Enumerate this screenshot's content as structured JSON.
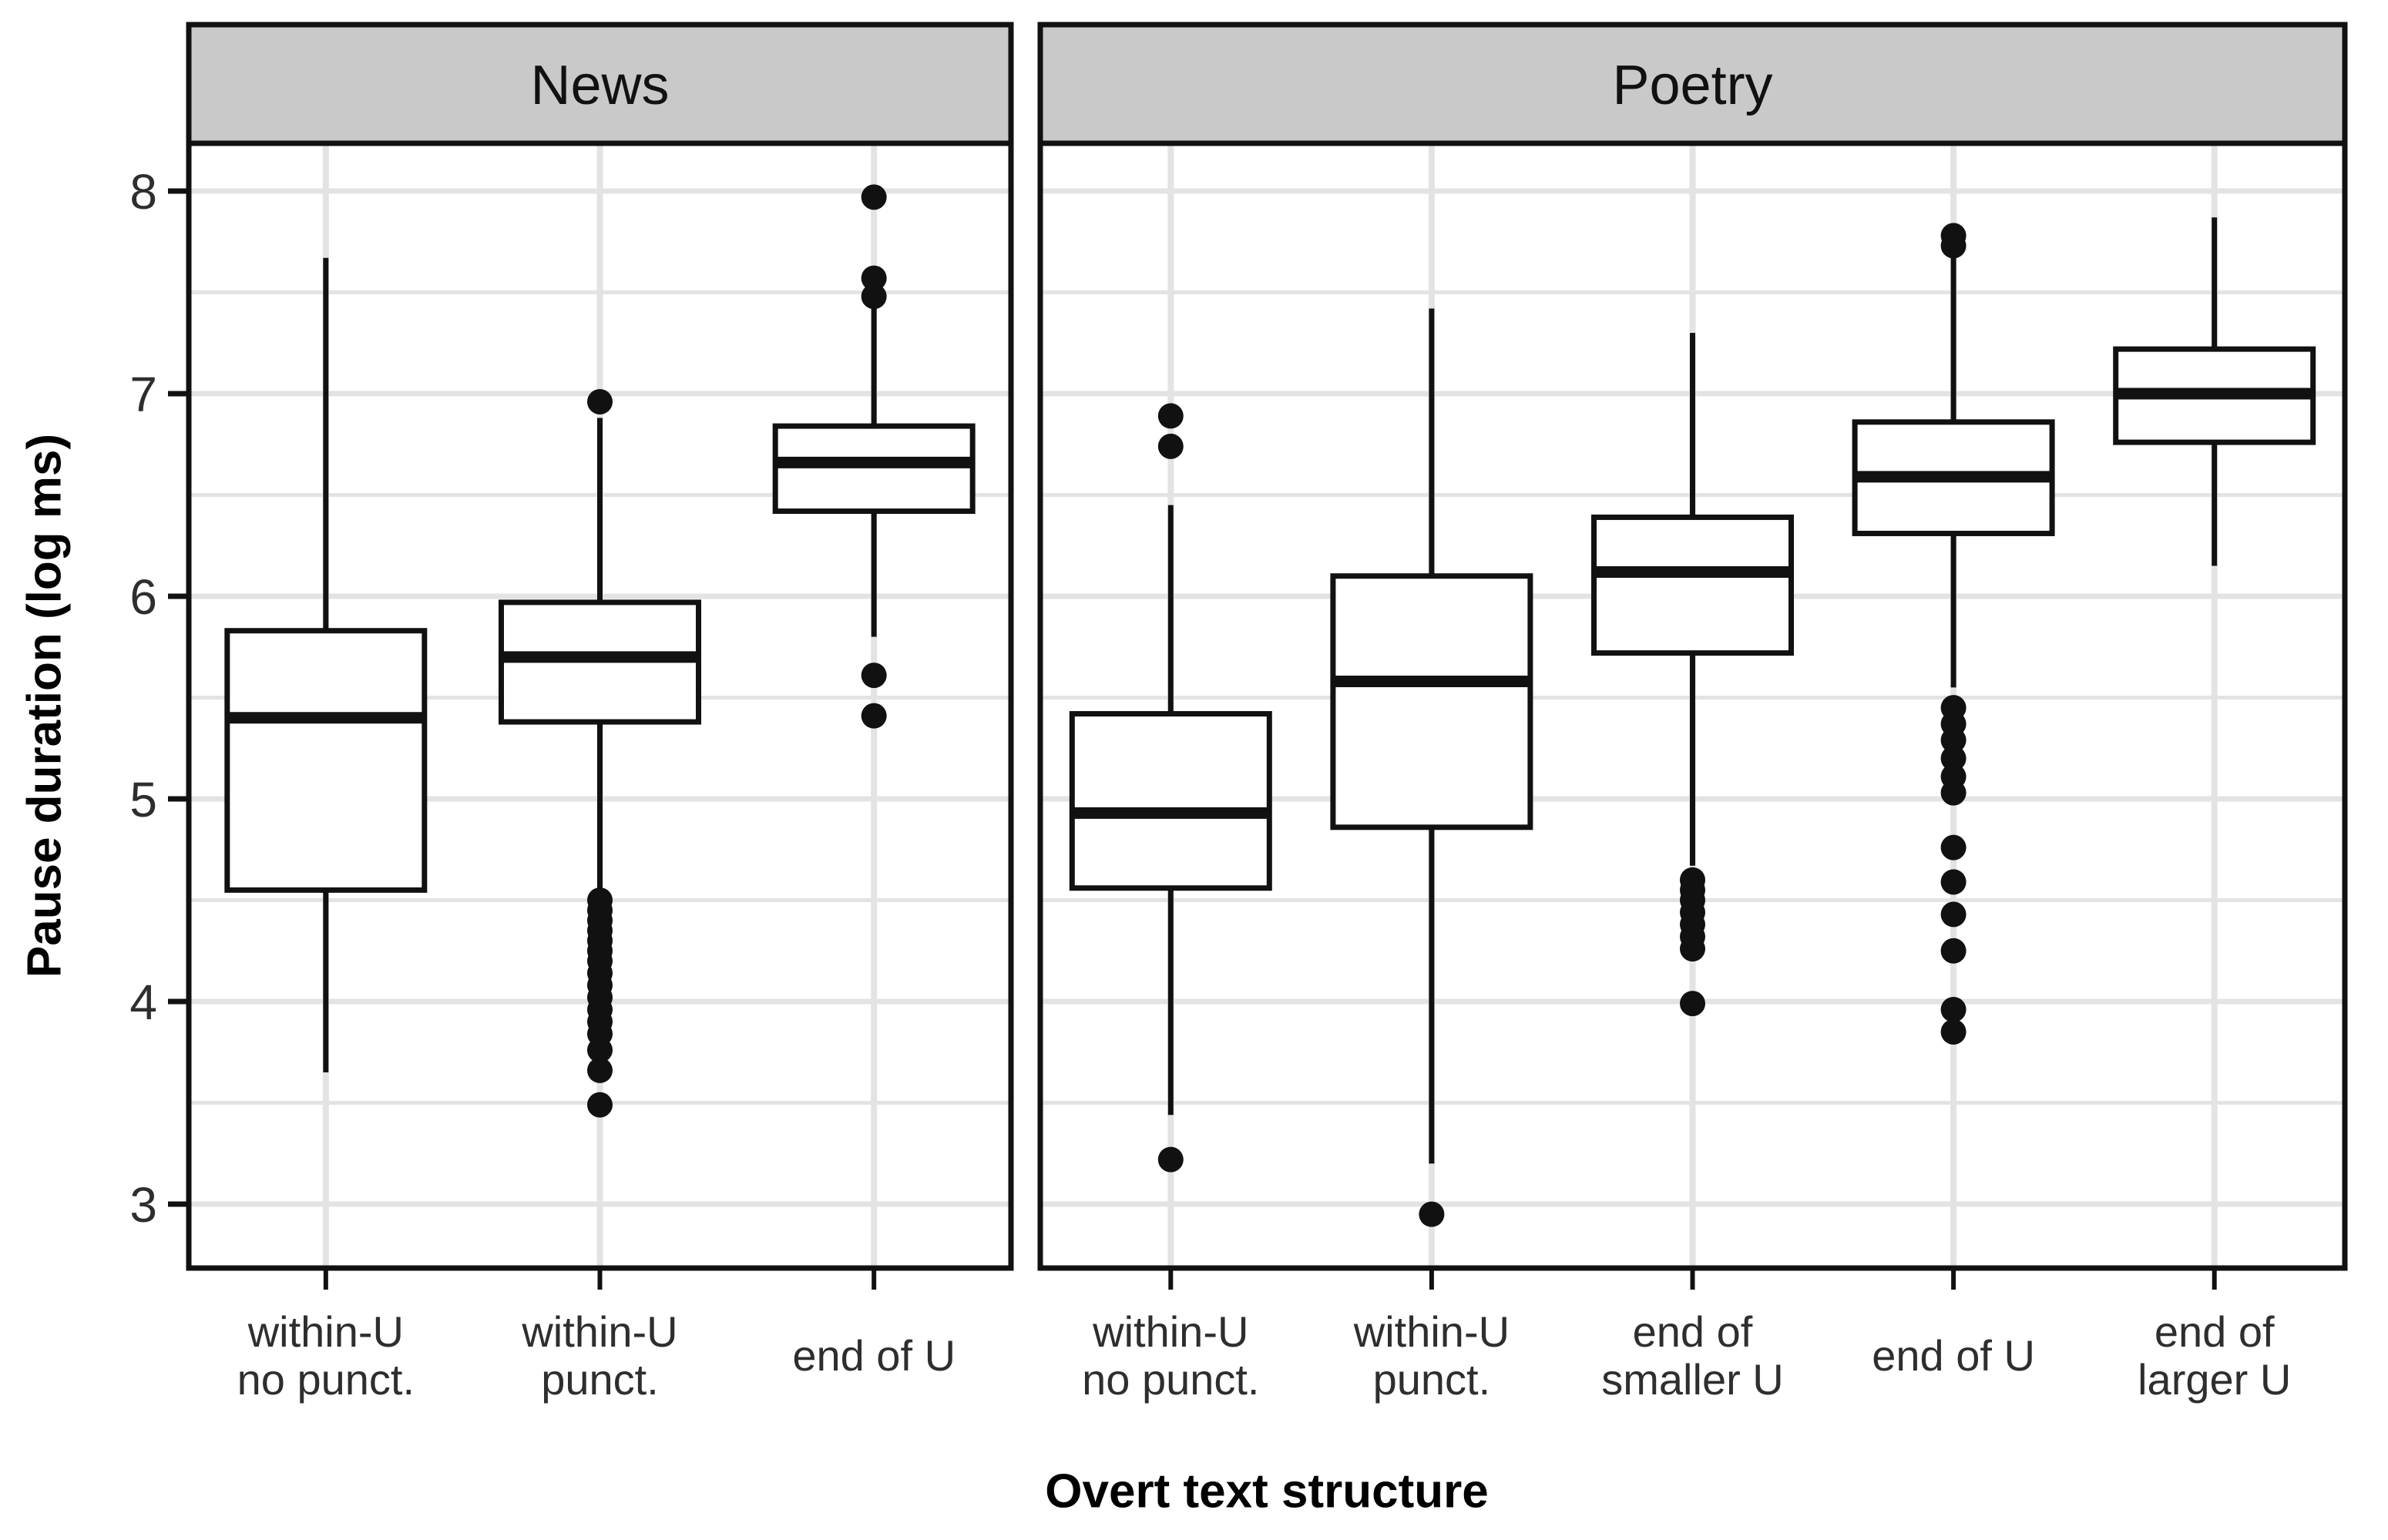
{
  "chart_data": {
    "type": "boxplot",
    "title": "",
    "xlabel": "Overt text structure",
    "ylabel": "Pause duration (log ms)",
    "ylim": [
      2.7,
      8.25
    ],
    "yticks": [
      3,
      4,
      5,
      6,
      7,
      8
    ],
    "minor_gridlines": [
      3.5,
      4.5,
      5.5,
      6.5,
      7.5
    ],
    "grid": "on",
    "legend": "none",
    "facets": [
      {
        "label": "News",
        "boxes": [
          {
            "category_lines": [
              "within-U",
              "no punct."
            ],
            "whisker_low": 3.65,
            "q1": 4.55,
            "median": 5.4,
            "q3": 5.83,
            "whisker_high": 7.67,
            "outliers": []
          },
          {
            "category_lines": [
              "within-U",
              "punct."
            ],
            "whisker_low": 4.56,
            "q1": 5.38,
            "median": 5.7,
            "q3": 5.97,
            "whisker_high": 6.88,
            "outliers": [
              6.96,
              4.5,
              4.45,
              4.4,
              4.35,
              4.3,
              4.25,
              4.2,
              4.14,
              4.08,
              4.02,
              3.96,
              3.9,
              3.84,
              3.76,
              3.66,
              3.49
            ]
          },
          {
            "category_lines": [
              "end of U"
            ],
            "whisker_low": 5.8,
            "q1": 6.42,
            "median": 6.66,
            "q3": 6.84,
            "whisker_high": 7.42,
            "outliers": [
              7.97,
              7.57,
              7.48,
              5.61,
              5.41
            ]
          }
        ]
      },
      {
        "label": "Poetry",
        "boxes": [
          {
            "category_lines": [
              "within-U",
              "no punct."
            ],
            "whisker_low": 3.44,
            "q1": 4.56,
            "median": 4.93,
            "q3": 5.42,
            "whisker_high": 6.45,
            "outliers": [
              6.89,
              6.74,
              3.22
            ]
          },
          {
            "category_lines": [
              "within-U",
              "punct."
            ],
            "whisker_low": 3.2,
            "q1": 4.86,
            "median": 5.58,
            "q3": 6.1,
            "whisker_high": 7.42,
            "outliers": [
              2.95
            ]
          },
          {
            "category_lines": [
              "end of",
              "smaller U"
            ],
            "whisker_low": 4.67,
            "q1": 5.72,
            "median": 6.12,
            "q3": 6.39,
            "whisker_high": 7.3,
            "outliers": [
              4.6,
              4.55,
              4.5,
              4.44,
              4.38,
              4.32,
              4.26,
              3.99
            ]
          },
          {
            "category_lines": [
              "end of U"
            ],
            "whisker_low": 5.55,
            "q1": 6.31,
            "median": 6.59,
            "q3": 6.86,
            "whisker_high": 7.67,
            "outliers": [
              7.78,
              7.73,
              5.45,
              5.37,
              5.29,
              5.2,
              5.11,
              5.03,
              4.76,
              4.59,
              4.43,
              4.25,
              3.96,
              3.85
            ]
          },
          {
            "category_lines": [
              "end of",
              "larger U"
            ],
            "whisker_low": 6.15,
            "q1": 6.76,
            "median": 7.0,
            "q3": 7.22,
            "whisker_high": 7.87,
            "outliers": []
          }
        ]
      }
    ],
    "colors": {
      "line": "#111111",
      "strip_bg": "#c9c9c9",
      "grid": "#e3e3e3",
      "axis_text": "#2e2e2e",
      "panel_bg": "#ffffff"
    }
  }
}
